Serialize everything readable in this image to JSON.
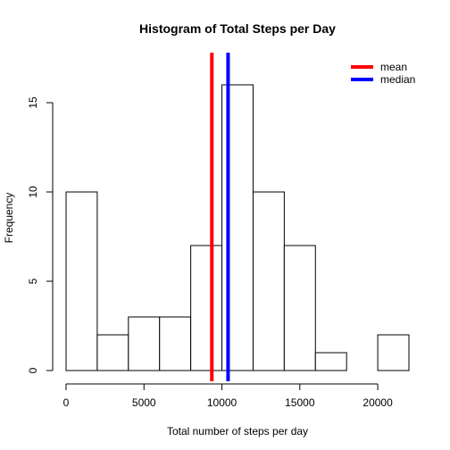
{
  "chart_data": {
    "type": "bar",
    "subtype": "histogram",
    "title": "Histogram of Total Steps per Day",
    "xlabel": "Total number of steps per day",
    "ylabel": "Frequency",
    "bin_edges": [
      0,
      2000,
      4000,
      6000,
      8000,
      10000,
      12000,
      14000,
      16000,
      18000,
      20000,
      22000
    ],
    "counts": [
      10,
      2,
      3,
      3,
      7,
      16,
      10,
      7,
      1,
      0,
      2
    ],
    "xlim": [
      0,
      22000
    ],
    "ylim": [
      0,
      16
    ],
    "x_ticks": [
      0,
      5000,
      10000,
      15000,
      20000
    ],
    "x_tick_labels": [
      "0",
      "5000",
      "10000",
      "15000",
      "20000"
    ],
    "y_ticks": [
      0,
      5,
      10,
      15
    ],
    "y_tick_labels": [
      "0",
      "5",
      "10",
      "15"
    ],
    "grid": false,
    "legend_position": "top-right",
    "reference_lines": [
      {
        "label": "mean",
        "value": 9354,
        "color": "#ff0000"
      },
      {
        "label": "median",
        "value": 10395,
        "color": "#0000ff"
      }
    ],
    "bar_fill": "#ffffff",
    "bar_stroke": "#000000"
  }
}
